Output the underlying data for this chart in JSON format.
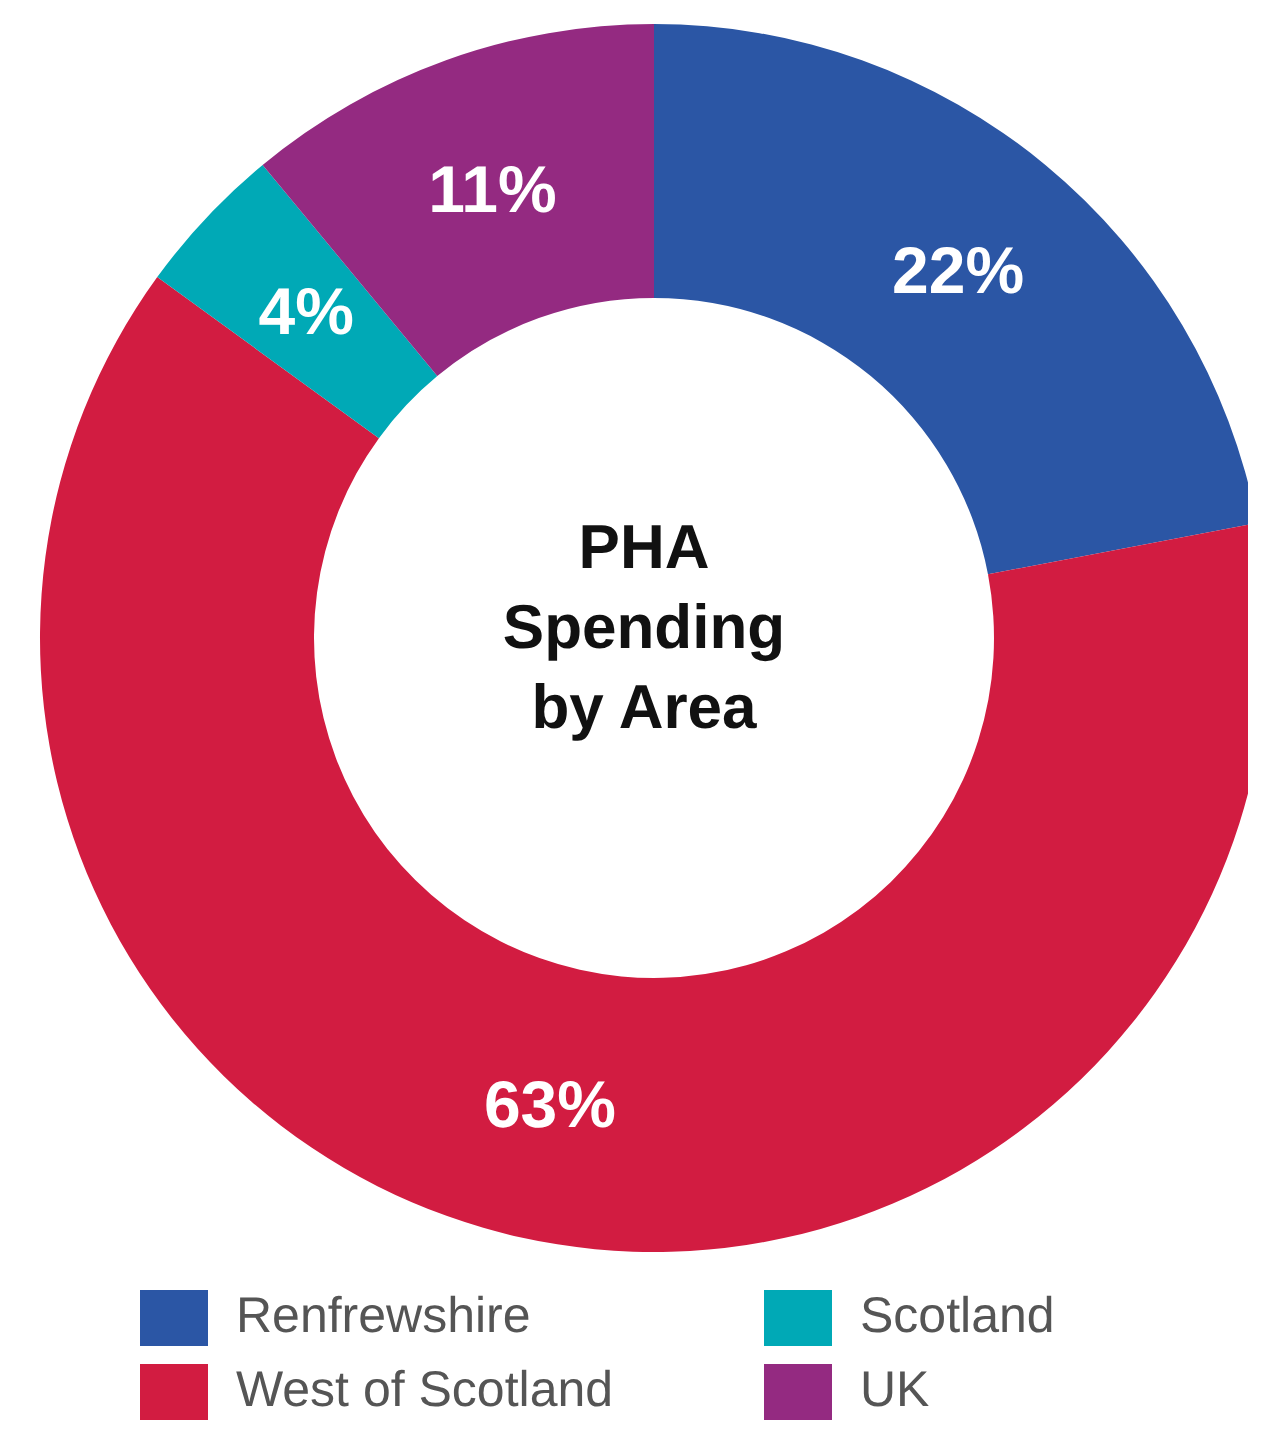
{
  "chart_data": {
    "type": "donut",
    "title": "PHA Spending by Area",
    "categories": [
      "Renfrewshire",
      "West of Scotland",
      "Scotland",
      "UK"
    ],
    "values": [
      22,
      63,
      4,
      11
    ],
    "value_labels": [
      "22%",
      "63%",
      "4%",
      "11%"
    ],
    "colors": [
      "#2b56a5",
      "#d21c41",
      "#00a9b6",
      "#942a81"
    ],
    "legend": "bottom"
  }
}
